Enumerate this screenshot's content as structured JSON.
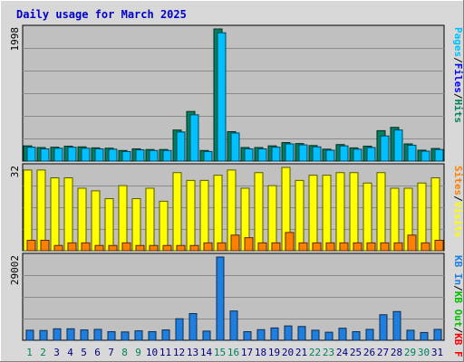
{
  "chart_data": {
    "type": "bar",
    "title": "Daily usage for March 2025",
    "colors": {
      "title": "#0000cc",
      "hits": "#00805c",
      "files": "#0000ff",
      "pages": "#00c0ff",
      "visits": "#ffff00",
      "sites": "#ff8000",
      "kb_in": "#1e7fe0",
      "kb_out": "#00c000",
      "kb_f": "#ff0000",
      "weekday_label": "#000080",
      "weekend_label": "#00805c",
      "panel_bg": "#c0c0c0",
      "frame_bg": "#d8d8d8"
    },
    "days": [
      "1",
      "2",
      "3",
      "4",
      "5",
      "6",
      "7",
      "8",
      "9",
      "10",
      "11",
      "12",
      "13",
      "14",
      "15",
      "16",
      "17",
      "18",
      "19",
      "20",
      "21",
      "22",
      "23",
      "24",
      "25",
      "26",
      "27",
      "28",
      "29",
      "30",
      "31"
    ],
    "weekend_days": [
      1,
      2,
      8,
      9,
      15,
      16,
      22,
      23,
      29,
      30
    ],
    "panels": [
      {
        "name": "hits-files-pages",
        "max_label": "1998",
        "ymax": 1998,
        "legend": [
          {
            "text": "Hits",
            "color": "#00805c"
          },
          {
            "text": "/",
            "color": "#000000"
          },
          {
            "text": "Files",
            "color": "#0000ff"
          },
          {
            "text": "/",
            "color": "#000000"
          },
          {
            "text": "Pages",
            "color": "#00c0ff"
          }
        ],
        "series": [
          {
            "name": "Hits",
            "color": "#00805c",
            "values": [
              230,
              205,
              210,
              225,
              215,
              200,
              195,
              160,
              185,
              175,
              175,
              470,
              750,
              160,
              1998,
              445,
              205,
              205,
              230,
              280,
              265,
              235,
              180,
              250,
              200,
              225,
              460,
              510,
              260,
              165,
              190
            ]
          },
          {
            "name": "Pages",
            "color": "#00c0ff",
            "values": [
              210,
              185,
              195,
              210,
              195,
              185,
              180,
              145,
              170,
              160,
              160,
              440,
              700,
              145,
              1940,
              425,
              185,
              185,
              210,
              260,
              245,
              215,
              165,
              230,
              180,
              205,
              380,
              470,
              240,
              150,
              175
            ]
          }
        ]
      },
      {
        "name": "visits-sites",
        "max_label": "32",
        "ymax": 32,
        "legend": [
          {
            "text": "Visits",
            "color": "#ffff00"
          },
          {
            "text": "/",
            "color": "#000000"
          },
          {
            "text": "Sites",
            "color": "#ff8000"
          }
        ],
        "series": [
          {
            "name": "Visits",
            "color": "#ffff00",
            "values": [
              31,
              31,
              28,
              28,
              24,
              23,
              20,
              25,
              20,
              24,
              19,
              30,
              27,
              27,
              29,
              31,
              24,
              30,
              25,
              32,
              27,
              29,
              29,
              30,
              30,
              26,
              30,
              24,
              24,
              26,
              28
            ]
          },
          {
            "name": "Sites",
            "color": "#ff8000",
            "values": [
              4,
              4,
              2,
              3,
              3,
              2,
              2,
              3,
              2,
              2,
              2,
              2,
              2,
              3,
              3,
              6,
              5,
              3,
              3,
              7,
              3,
              3,
              3,
              3,
              3,
              3,
              3,
              3,
              6,
              3,
              4
            ]
          }
        ]
      },
      {
        "name": "kbytes",
        "max_label": "29002",
        "ymax": 29002,
        "legend": [
          {
            "text": "KB F",
            "color": "#ff0000"
          },
          {
            "text": "/",
            "color": "#000000"
          },
          {
            "text": "KB Out",
            "color": "#00c000"
          },
          {
            "text": "/",
            "color": "#000000"
          },
          {
            "text": "KB In",
            "color": "#1e7fe0"
          }
        ],
        "series": [
          {
            "name": "KB In",
            "color": "#1e7fe0",
            "values": [
              3500,
              3400,
              4000,
              4000,
              3600,
              3800,
              3000,
              2900,
              3300,
              3000,
              3600,
              7500,
              9300,
              3200,
              29002,
              10200,
              3000,
              3700,
              4300,
              5000,
              4800,
              3500,
              2800,
              4200,
              3000,
              3800,
              8900,
              10000,
              3500,
              2700,
              3800
            ]
          }
        ]
      }
    ]
  }
}
